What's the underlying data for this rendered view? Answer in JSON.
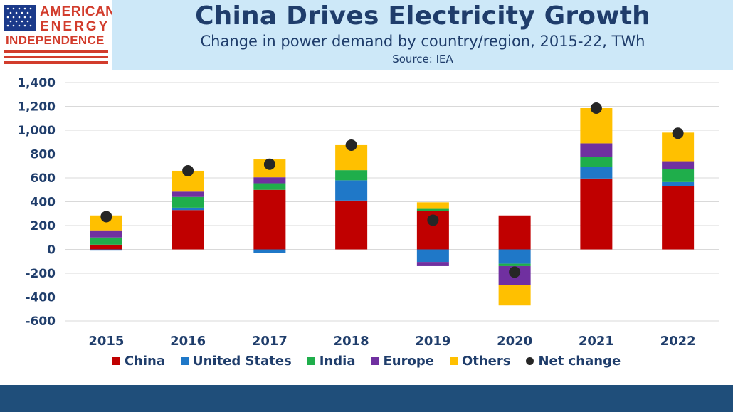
{
  "header": {
    "title": "China Drives Electricity Growth",
    "subtitle": "Change in power demand by country/region, 2015-22, TWh",
    "source": "Source: IEA"
  },
  "logo": {
    "line1": "AMERICAN",
    "line2": "ENERGY",
    "line3": "INDEPENDENCE",
    "flag_icon": "us-flag-icon"
  },
  "colors": {
    "China": "#c00000",
    "United States": "#1f78c8",
    "India": "#1fae4b",
    "Europe": "#7030a0",
    "Others": "#ffc000",
    "Net change": "#262626"
  },
  "chart_data": {
    "type": "bar",
    "stacked": true,
    "categories": [
      "2015",
      "2016",
      "2017",
      "2018",
      "2019",
      "2020",
      "2021",
      "2022"
    ],
    "series": [
      {
        "name": "China",
        "values": [
          40,
          330,
          500,
          410,
          325,
          285,
          595,
          530
        ]
      },
      {
        "name": "United States",
        "values": [
          -10,
          20,
          -30,
          170,
          -105,
          -120,
          100,
          35
        ]
      },
      {
        "name": "India",
        "values": [
          60,
          90,
          55,
          85,
          15,
          -20,
          80,
          110
        ]
      },
      {
        "name": "Europe",
        "values": [
          60,
          45,
          50,
          0,
          -35,
          -160,
          115,
          65
        ]
      },
      {
        "name": "Others",
        "values": [
          125,
          175,
          150,
          210,
          55,
          -170,
          295,
          240
        ]
      }
    ],
    "net_change": {
      "name": "Net change",
      "values": [
        275,
        660,
        715,
        875,
        245,
        -190,
        1185,
        975
      ]
    },
    "ylim": [
      -600,
      1400
    ],
    "yticks": [
      -600,
      -400,
      -200,
      0,
      200,
      400,
      600,
      800,
      1000,
      1200,
      1400
    ],
    "ytick_labels": [
      "-600",
      "-400",
      "-200",
      "0",
      "200",
      "400",
      "600",
      "800",
      "1,000",
      "1,200",
      "1,400"
    ],
    "grid": true,
    "legend_position": "bottom"
  }
}
